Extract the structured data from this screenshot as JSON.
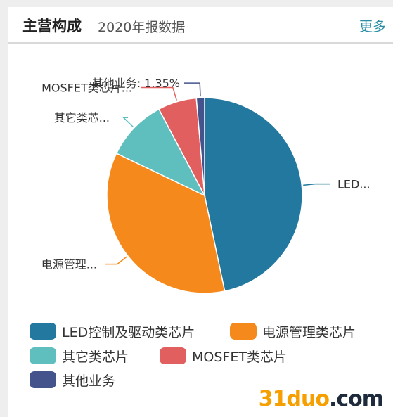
{
  "header": {
    "title": "主营构成",
    "subtitle": "2020年报数据",
    "more_label": "更多"
  },
  "chart_data": {
    "type": "pie",
    "title": "",
    "slices": [
      {
        "name": "LED控制及驱动类芯片",
        "label": "LED...",
        "value": 46.7,
        "color": "#22789f"
      },
      {
        "name": "电源管理类芯片",
        "label": "电源管理...",
        "value": 35.4,
        "color": "#f6891b"
      },
      {
        "name": "其它类芯片",
        "label": "其它类芯...",
        "value": 10.15,
        "color": "#5fbfbe"
      },
      {
        "name": "MOSFET类芯片",
        "label": "MOSFET类芯片...",
        "value": 6.4,
        "color": "#e25f5f"
      },
      {
        "name": "其他业务",
        "label": "其他业务: 1.35%",
        "value": 1.35,
        "color": "#45538c"
      }
    ],
    "legend_position": "bottom"
  },
  "watermark": {
    "part_a": "31duo",
    "part_b": ".com"
  }
}
